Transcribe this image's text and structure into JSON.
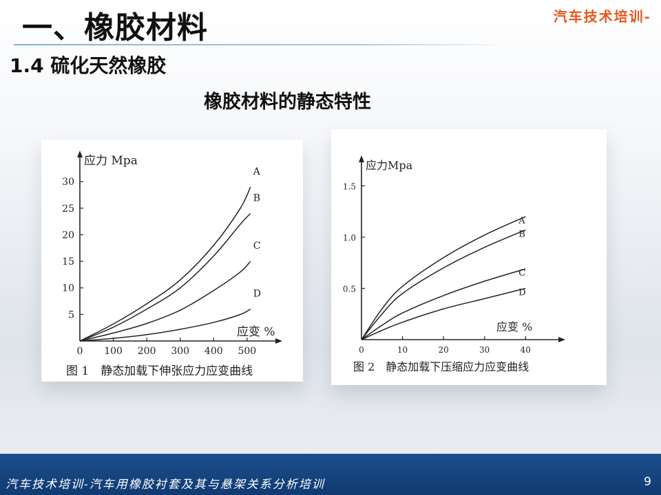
{
  "header": {
    "title": "一、橡胶材料",
    "brand": "汽车技术培训-"
  },
  "section_title": "1.4 硫化天然橡胶",
  "subtitle": "橡胶材料的静态特性",
  "footer": {
    "text": "汽车技术培训-汽车用橡胶衬套及其与悬架关系分析培训",
    "page": "9"
  },
  "colors": {
    "footer_bg": "#1d4f8c",
    "brand": "#e8571c",
    "curve": "#222222"
  },
  "chart_data": [
    {
      "type": "line",
      "caption": "图 1　静态加载下伸张应力应变曲线",
      "ylabel": "应力 Mpa",
      "xlabel": "应变 %",
      "xlim": [
        0,
        560
      ],
      "ylim": [
        0,
        33
      ],
      "x_ticks": [
        0,
        100,
        200,
        300,
        400,
        500
      ],
      "y_ticks": [
        5,
        10,
        15,
        20,
        25,
        30
      ],
      "series": [
        {
          "name": "A",
          "points": [
            [
              0,
              0
            ],
            [
              100,
              3.2
            ],
            [
              200,
              7
            ],
            [
              300,
              11.5
            ],
            [
              400,
              18
            ],
            [
              480,
              25
            ],
            [
              510,
              29
            ]
          ]
        },
        {
          "name": "B",
          "points": [
            [
              0,
              0
            ],
            [
              100,
              2.6
            ],
            [
              200,
              6
            ],
            [
              300,
              10
            ],
            [
              400,
              16
            ],
            [
              480,
              22
            ],
            [
              510,
              24
            ]
          ]
        },
        {
          "name": "C",
          "points": [
            [
              0,
              0
            ],
            [
              100,
              1.5
            ],
            [
              200,
              3.3
            ],
            [
              300,
              5.8
            ],
            [
              400,
              9.5
            ],
            [
              480,
              13
            ],
            [
              510,
              15
            ]
          ]
        },
        {
          "name": "D",
          "points": [
            [
              0,
              0
            ],
            [
              100,
              0.5
            ],
            [
              200,
              1.2
            ],
            [
              300,
              2.2
            ],
            [
              400,
              3.5
            ],
            [
              480,
              5
            ],
            [
              510,
              6
            ]
          ]
        }
      ]
    },
    {
      "type": "line",
      "caption": "图 2　静态加载下压缩应力应变曲线",
      "ylabel": "应力Mpa",
      "xlabel": "应变 %",
      "xlim": [
        0,
        46
      ],
      "ylim": [
        0,
        1.65
      ],
      "x_ticks": [
        0,
        10,
        20,
        30,
        40
      ],
      "y_ticks": [
        0.5,
        1.0,
        1.5
      ],
      "y_tick_labels": [
        "0.5",
        "1.0",
        "1.5"
      ],
      "series": [
        {
          "name": "A",
          "points": [
            [
              0,
              0
            ],
            [
              5,
              0.3
            ],
            [
              10,
              0.52
            ],
            [
              20,
              0.8
            ],
            [
              30,
              1.02
            ],
            [
              40,
              1.2
            ]
          ]
        },
        {
          "name": "B",
          "points": [
            [
              0,
              0
            ],
            [
              5,
              0.25
            ],
            [
              10,
              0.45
            ],
            [
              20,
              0.7
            ],
            [
              30,
              0.9
            ],
            [
              40,
              1.07
            ]
          ]
        },
        {
          "name": "C",
          "points": [
            [
              0,
              0
            ],
            [
              5,
              0.14
            ],
            [
              10,
              0.26
            ],
            [
              20,
              0.43
            ],
            [
              30,
              0.57
            ],
            [
              40,
              0.69
            ]
          ]
        },
        {
          "name": "D",
          "points": [
            [
              0,
              0
            ],
            [
              5,
              0.09
            ],
            [
              10,
              0.17
            ],
            [
              20,
              0.3
            ],
            [
              30,
              0.4
            ],
            [
              40,
              0.5
            ]
          ]
        }
      ]
    }
  ]
}
